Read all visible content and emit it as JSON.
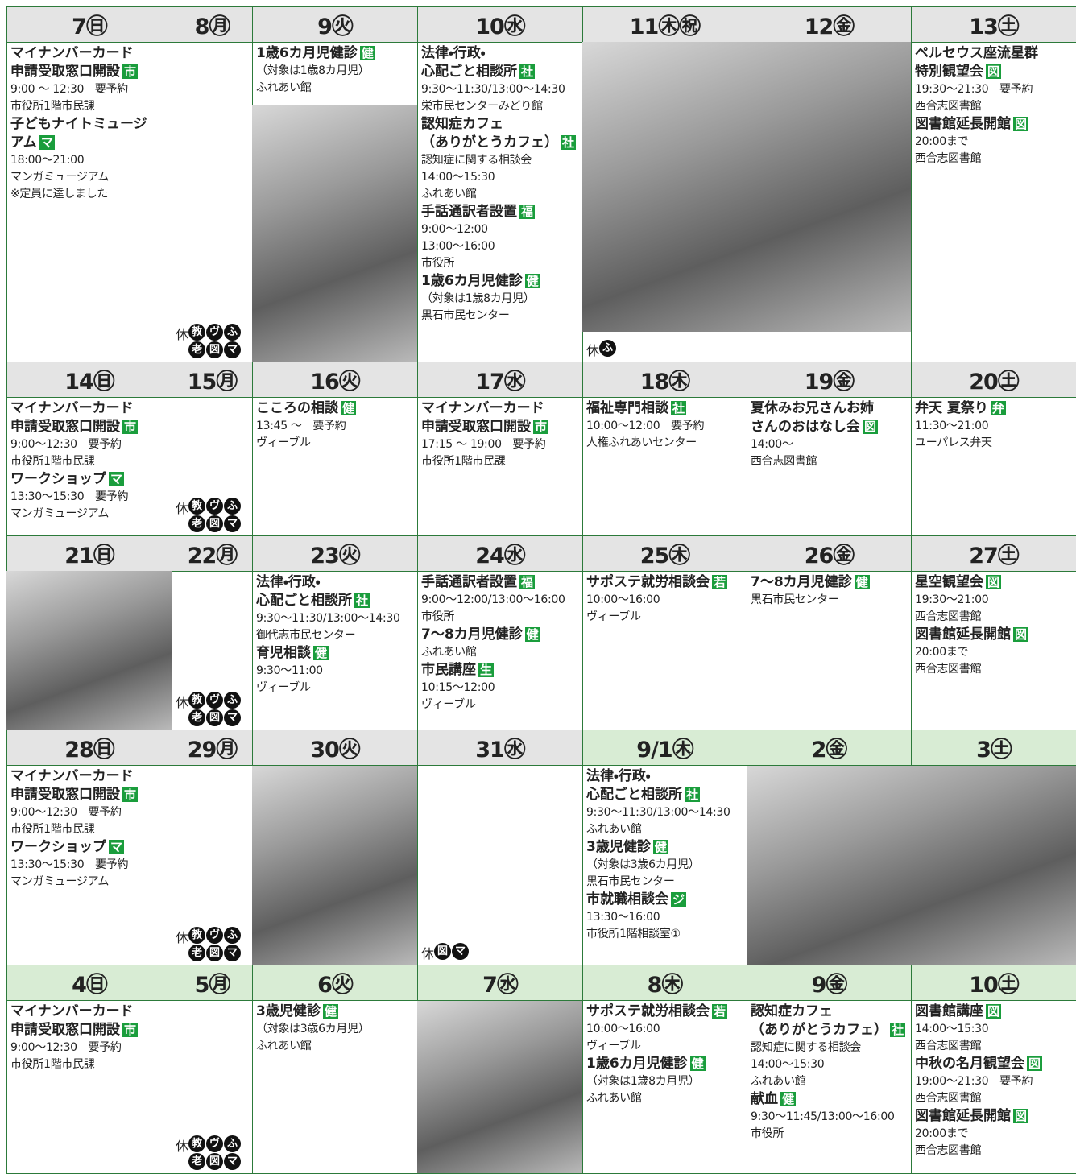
{
  "weeks": [
    {
      "days": [
        {
          "date": "7㊐",
          "events": [
            {
              "title": [
                "マイナンバーカード",
                "申請受取窓口開設"
              ],
              "tag": "市",
              "lines": [
                "9:00 ～ 12:30　要予約",
                "市役所1階市民課"
              ]
            },
            {
              "title": [
                "子どもナイトミュージ",
                "アム"
              ],
              "tag": "マ",
              "lines": [
                "18:00～21:00",
                "マンガミュージアム",
                "※定員に達しました"
              ]
            }
          ]
        },
        {
          "date": "8㊊",
          "closed": {
            "label": "休",
            "icons": [
              "教",
              "ヴ",
              "ふ",
              "老",
              "図",
              "マ"
            ]
          }
        },
        {
          "date": "9㊋",
          "events": [
            {
              "title": [
                "1歳6カ月児健診"
              ],
              "tag": "健",
              "lines": [
                "（対象は1歳8カ月児）",
                "ふれあい館"
              ]
            }
          ]
        },
        {
          "date": "10㊌",
          "events": [
            {
              "title": [
                "法律・行政・",
                "心配ごと相談所"
              ],
              "tag": "社",
              "lines": [
                "9:30～11:30/13:00～14:30",
                "栄市民センターみどり館"
              ]
            },
            {
              "title": [
                "認知症カフェ",
                "（ありがとうカフェ）"
              ],
              "tag": "社",
              "lines": [
                "認知症に関する相談会",
                "14:00～15:30",
                "ふれあい館"
              ]
            },
            {
              "title": [
                "手話通訳者設置"
              ],
              "tag": "福",
              "lines": [
                "9:00～12:00",
                "13:00～16:00",
                "市役所"
              ]
            },
            {
              "title": [
                "1歳6カ月児健診"
              ],
              "tag": "健",
              "lines": [
                "（対象は1歳8カ月児）",
                "黒石市民センター"
              ]
            }
          ]
        },
        {
          "date": "11㊍㊗",
          "closed": {
            "label": "休",
            "icons": [
              "ふ"
            ]
          }
        },
        {
          "date": "12㊎"
        },
        {
          "date": "13㊏",
          "events": [
            {
              "title": [
                "ペルセウス座流星群",
                "特別観望会"
              ],
              "tag": "図",
              "lines": [
                "19:30～21:30　要予約",
                "西合志図書館"
              ]
            },
            {
              "title": [
                "図書館延長開館"
              ],
              "tag": "図",
              "lines": [
                "20:00まで",
                "西合志図書館"
              ]
            }
          ]
        }
      ]
    },
    {
      "days": [
        {
          "date": "14㊐",
          "events": [
            {
              "title": [
                "マイナンバーカード",
                "申請受取窓口開設"
              ],
              "tag": "市",
              "lines": [
                "9:00～12:30　要予約",
                "市役所1階市民課"
              ]
            },
            {
              "title": [
                "ワークショップ"
              ],
              "tag": "マ",
              "lines": [
                "13:30～15:30　要予約",
                "マンガミュージアム"
              ]
            }
          ]
        },
        {
          "date": "15㊊",
          "closed": {
            "label": "休",
            "icons": [
              "教",
              "ヴ",
              "ふ",
              "老",
              "図",
              "マ"
            ]
          }
        },
        {
          "date": "16㊋",
          "events": [
            {
              "title": [
                "こころの相談"
              ],
              "tag": "健",
              "lines": [
                "13:45 ～　要予約",
                "ヴィーブル"
              ]
            }
          ]
        },
        {
          "date": "17㊌",
          "events": [
            {
              "title": [
                "マイナンバーカード",
                "申請受取窓口開設"
              ],
              "tag": "市",
              "lines": [
                "17:15 ～ 19:00　要予約",
                "市役所1階市民課"
              ]
            }
          ]
        },
        {
          "date": "18㊍",
          "events": [
            {
              "title": [
                "福祉専門相談"
              ],
              "tag": "社",
              "lines": [
                "10:00～12:00　要予約",
                "人権ふれあいセンター"
              ]
            }
          ]
        },
        {
          "date": "19㊎",
          "events": [
            {
              "title": [
                "夏休みお兄さんお姉",
                "さんのおはなし会"
              ],
              "tag": "図",
              "lines": [
                "14:00～",
                "西合志図書館"
              ]
            }
          ]
        },
        {
          "date": "20㊏",
          "events": [
            {
              "title": [
                "弁天 夏祭り"
              ],
              "tag": "弁",
              "lines": [
                "11:30～21:00",
                "ユーパレス弁天"
              ]
            }
          ]
        }
      ]
    },
    {
      "days": [
        {
          "date": "21㊐"
        },
        {
          "date": "22㊊",
          "closed": {
            "label": "休",
            "icons": [
              "教",
              "ヴ",
              "ふ",
              "老",
              "図",
              "マ"
            ]
          }
        },
        {
          "date": "23㊋",
          "events": [
            {
              "title": [
                "法律・行政・",
                "心配ごと相談所"
              ],
              "tag": "社",
              "lines": [
                "9:30～11:30/13:00～14:30",
                "御代志市民センター"
              ]
            },
            {
              "title": [
                "育児相談"
              ],
              "tag": "健",
              "lines": [
                "9:30～11:00",
                "ヴィーブル"
              ]
            }
          ]
        },
        {
          "date": "24㊌",
          "events": [
            {
              "title": [
                "手話通訳者設置"
              ],
              "tag": "福",
              "lines": [
                "9:00～12:00/13:00～16:00",
                "市役所"
              ]
            },
            {
              "title": [
                "7～8カ月児健診"
              ],
              "tag": "健",
              "lines": [
                "ふれあい館"
              ]
            },
            {
              "title": [
                "市民講座"
              ],
              "tag": "生",
              "lines": [
                "10:15～12:00",
                "ヴィーブル"
              ]
            }
          ]
        },
        {
          "date": "25㊍",
          "events": [
            {
              "title": [
                "サポステ就労相談会"
              ],
              "tag": "若",
              "lines": [
                "10:00～16:00",
                "ヴィーブル"
              ]
            }
          ]
        },
        {
          "date": "26㊎",
          "events": [
            {
              "title": [
                "7～8カ月児健診"
              ],
              "tag": "健",
              "lines": [
                "黒石市民センター"
              ]
            }
          ]
        },
        {
          "date": "27㊏",
          "events": [
            {
              "title": [
                "星空観望会"
              ],
              "tag": "図",
              "lines": [
                "19:30～21:00",
                "西合志図書館"
              ]
            },
            {
              "title": [
                "図書館延長開館"
              ],
              "tag": "図",
              "lines": [
                "20:00まで",
                "西合志図書館"
              ]
            }
          ]
        }
      ]
    },
    {
      "days": [
        {
          "date": "28㊐",
          "events": [
            {
              "title": [
                "マイナンバーカード",
                "申請受取窓口開設"
              ],
              "tag": "市",
              "lines": [
                "9:00～12:30　要予約",
                "市役所1階市民課"
              ]
            },
            {
              "title": [
                "ワークショップ"
              ],
              "tag": "マ",
              "lines": [
                "13:30～15:30　要予約",
                "マンガミュージアム"
              ]
            }
          ]
        },
        {
          "date": "29㊊",
          "closed": {
            "label": "休",
            "icons": [
              "教",
              "ヴ",
              "ふ",
              "老",
              "図",
              "マ"
            ]
          }
        },
        {
          "date": "30㊋"
        },
        {
          "date": "31㊌",
          "closed": {
            "label": "休",
            "icons": [
              "図",
              "マ"
            ]
          }
        },
        {
          "date": "9/1㊍",
          "header_color": "#d8ecd4",
          "events": [
            {
              "title": [
                "法律・行政・",
                "心配ごと相談所"
              ],
              "tag": "社",
              "lines": [
                "9:30～11:30/13:00～14:30",
                "ふれあい館"
              ]
            },
            {
              "title": [
                "3歳児健診"
              ],
              "tag": "健",
              "lines": [
                "（対象は3歳6カ月児）",
                "黒石市民センター"
              ]
            },
            {
              "title": [
                "市就職相談会"
              ],
              "tag": "ジ",
              "lines": [
                "13:30～16:00",
                "市役所1階相談室①"
              ]
            }
          ]
        },
        {
          "date": "2㊎",
          "header_color": "#d8ecd4"
        },
        {
          "date": "3㊏",
          "header_color": "#d8ecd4"
        }
      ]
    },
    {
      "days": [
        {
          "date": "4㊐",
          "header_color": "#d8ecd4",
          "events": [
            {
              "title": [
                "マイナンバーカード",
                "申請受取窓口開設"
              ],
              "tag": "市",
              "lines": [
                "9:00～12:30　要予約",
                "市役所1階市民課"
              ]
            }
          ]
        },
        {
          "date": "5㊊",
          "header_color": "#d8ecd4",
          "closed": {
            "label": "休",
            "icons": [
              "教",
              "ヴ",
              "ふ",
              "老",
              "図",
              "マ"
            ]
          }
        },
        {
          "date": "6㊋",
          "header_color": "#d8ecd4",
          "events": [
            {
              "title": [
                "3歳児健診"
              ],
              "tag": "健",
              "lines": [
                "（対象は3歳6カ月児）",
                "ふれあい館"
              ]
            }
          ]
        },
        {
          "date": "7㊌",
          "header_color": "#d8ecd4"
        },
        {
          "date": "8㊍",
          "header_color": "#d8ecd4",
          "events": [
            {
              "title": [
                "サポステ就労相談会"
              ],
              "tag": "若",
              "lines": [
                "10:00～16:00",
                "ヴィーブル"
              ]
            },
            {
              "title": [
                "1歳6カ月児健診"
              ],
              "tag": "健",
              "lines": [
                "（対象は1歳8カ月児）",
                "ふれあい館"
              ]
            }
          ]
        },
        {
          "date": "9㊎",
          "header_color": "#d8ecd4",
          "events": [
            {
              "title": [
                "認知症カフェ",
                "（ありがとうカフェ）"
              ],
              "tag": "社",
              "lines": [
                "認知症に関する相談会",
                "14:00～15:30",
                "ふれあい館"
              ]
            },
            {
              "title": [
                "献血"
              ],
              "tag": "健",
              "lines": [
                "9:30～11:45/13:00～16:00",
                "市役所"
              ]
            }
          ]
        },
        {
          "date": "10㊏",
          "header_color": "#d8ecd4",
          "events": [
            {
              "title": [
                "図書館講座"
              ],
              "tag": "図",
              "lines": [
                "14:00～15:30",
                "西合志図書館"
              ]
            },
            {
              "title": [
                "中秋の名月観望会"
              ],
              "tag": "図",
              "lines": [
                "19:00～21:30　要予約",
                "西合志図書館"
              ]
            },
            {
              "title": [
                "図書館延長開館"
              ],
              "tag": "図",
              "lines": [
                "20:00まで",
                "西合志図書館"
              ]
            }
          ]
        }
      ]
    }
  ]
}
